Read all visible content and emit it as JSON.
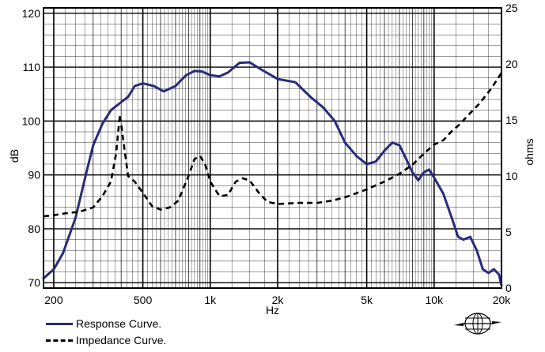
{
  "chart_data": {
    "type": "line",
    "title": "",
    "xlabel": "Hz",
    "ylabel_left": "dB",
    "ylabel_right": "ohms",
    "x_scale": "log",
    "xlim": [
      180,
      20000
    ],
    "ylim_left": [
      69,
      121
    ],
    "ylim_right": [
      0,
      25
    ],
    "x_ticks": [
      {
        "value": 200,
        "label": "200"
      },
      {
        "value": 500,
        "label": "500"
      },
      {
        "value": 1000,
        "label": "1k"
      },
      {
        "value": 2000,
        "label": "2k"
      },
      {
        "value": 5000,
        "label": "5k"
      },
      {
        "value": 10000,
        "label": "10k"
      },
      {
        "value": 20000,
        "label": "20k"
      }
    ],
    "y_left_ticks": [
      70,
      80,
      90,
      100,
      110,
      120
    ],
    "y_right_ticks": [
      0,
      5,
      10,
      15,
      20,
      25
    ],
    "grid": true,
    "line_color": "#2a2a7c",
    "series": [
      {
        "name": "Response Curve.",
        "axis": "left",
        "style": "solid",
        "points": [
          [
            180,
            70.8
          ],
          [
            200,
            72.5
          ],
          [
            220,
            75.5
          ],
          [
            250,
            82
          ],
          [
            280,
            90.5
          ],
          [
            300,
            95.5
          ],
          [
            330,
            99.5
          ],
          [
            360,
            102
          ],
          [
            400,
            103.5
          ],
          [
            430,
            104.5
          ],
          [
            460,
            106.5
          ],
          [
            500,
            107
          ],
          [
            560,
            106.5
          ],
          [
            620,
            105.5
          ],
          [
            700,
            106.5
          ],
          [
            780,
            108.5
          ],
          [
            850,
            109.3
          ],
          [
            920,
            109.2
          ],
          [
            1000,
            108.5
          ],
          [
            1100,
            108.3
          ],
          [
            1200,
            109
          ],
          [
            1350,
            110.8
          ],
          [
            1500,
            110.9
          ],
          [
            1700,
            109.5
          ],
          [
            2000,
            107.8
          ],
          [
            2400,
            107.2
          ],
          [
            2800,
            104.5
          ],
          [
            3200,
            102.5
          ],
          [
            3600,
            100
          ],
          [
            4000,
            96
          ],
          [
            4500,
            93.5
          ],
          [
            5000,
            92
          ],
          [
            5500,
            92.5
          ],
          [
            6000,
            94.5
          ],
          [
            6500,
            96
          ],
          [
            7000,
            95.5
          ],
          [
            7500,
            93
          ],
          [
            8000,
            90.5
          ],
          [
            8500,
            89
          ],
          [
            9000,
            90.5
          ],
          [
            9500,
            91
          ],
          [
            10000,
            89.5
          ],
          [
            11000,
            86.5
          ],
          [
            12000,
            82
          ],
          [
            12800,
            78.5
          ],
          [
            13500,
            78
          ],
          [
            14500,
            78.5
          ],
          [
            15500,
            76
          ],
          [
            16500,
            72.5
          ],
          [
            17500,
            71.8
          ],
          [
            18500,
            72.5
          ],
          [
            19500,
            71.5
          ],
          [
            20000,
            69.5
          ]
        ]
      },
      {
        "name": "Impedance Curve.",
        "axis": "right",
        "style": "dashed",
        "points": [
          [
            180,
            6.4
          ],
          [
            200,
            6.5
          ],
          [
            230,
            6.7
          ],
          [
            260,
            6.8
          ],
          [
            300,
            7.2
          ],
          [
            330,
            8.2
          ],
          [
            360,
            9.5
          ],
          [
            380,
            12
          ],
          [
            395,
            15.5
          ],
          [
            410,
            13
          ],
          [
            430,
            10
          ],
          [
            460,
            9.5
          ],
          [
            500,
            8.5
          ],
          [
            550,
            7.3
          ],
          [
            600,
            7
          ],
          [
            660,
            7.2
          ],
          [
            720,
            7.8
          ],
          [
            800,
            10
          ],
          [
            850,
            11.5
          ],
          [
            900,
            11.8
          ],
          [
            950,
            11
          ],
          [
            1000,
            9.5
          ],
          [
            1100,
            8.2
          ],
          [
            1200,
            8.3
          ],
          [
            1300,
            9.5
          ],
          [
            1400,
            9.8
          ],
          [
            1500,
            9.6
          ],
          [
            1650,
            8.5
          ],
          [
            1800,
            7.7
          ],
          [
            2000,
            7.5
          ],
          [
            2500,
            7.6
          ],
          [
            3000,
            7.6
          ],
          [
            3500,
            7.8
          ],
          [
            4000,
            8.1
          ],
          [
            5000,
            8.8
          ],
          [
            6000,
            9.5
          ],
          [
            7000,
            10.2
          ],
          [
            8000,
            11
          ],
          [
            9000,
            12
          ],
          [
            10000,
            12.8
          ],
          [
            11000,
            13.2
          ],
          [
            12000,
            14
          ],
          [
            13000,
            14.6
          ],
          [
            14000,
            15.3
          ],
          [
            16000,
            16.5
          ],
          [
            18000,
            17.8
          ],
          [
            20000,
            19.2
          ]
        ]
      }
    ]
  },
  "legend": {
    "response_label": "Response Curve.",
    "impedance_label": "Impedance Curve."
  },
  "logo": {
    "icon": "globe-logo-icon"
  }
}
